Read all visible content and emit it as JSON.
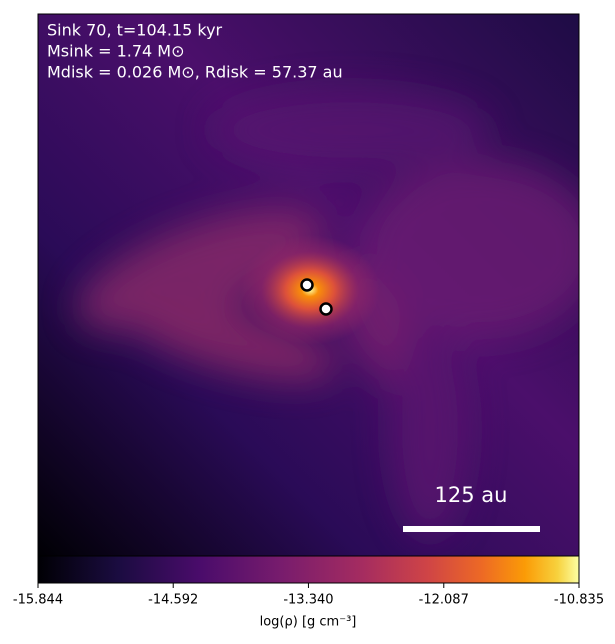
{
  "chart_data": {
    "type": "image",
    "annotations": [
      "Sink 70, t=104.15 kyr",
      "Msink = 1.74 M⊙",
      "Mdisk = 0.026 M⊙, Rdisk = 57.37 au"
    ],
    "scale_bar_label": "125 au",
    "colorbar": {
      "label": "log(ρ) [g cm⁻³]",
      "cmap": "inferno",
      "clim": [
        -15.844,
        -10.835
      ],
      "ticks": [
        -15.844,
        -14.592,
        {
          "value": -13.34,
          "label": "-13.340"
        },
        -12.087,
        -10.835
      ]
    }
  }
}
